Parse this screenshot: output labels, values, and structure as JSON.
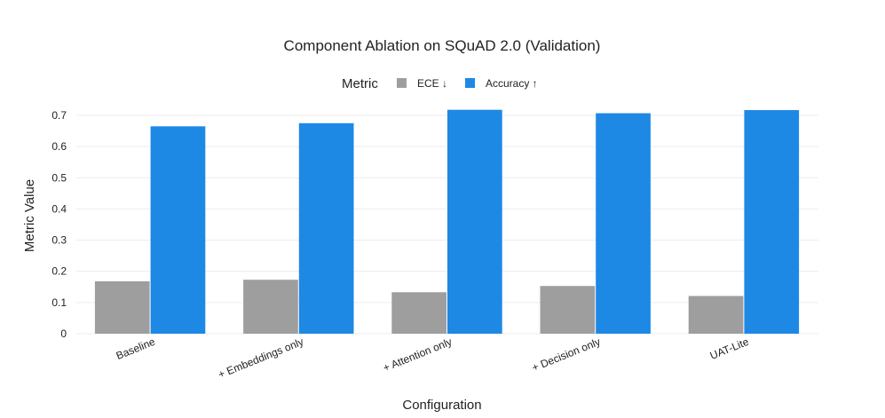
{
  "chart_data": {
    "type": "bar",
    "title": "Component Ablation on SQuAD 2.0 (Validation)",
    "xlabel": "Configuration",
    "ylabel": "Metric Value",
    "categories": [
      "Baseline",
      "+ Embeddings only",
      "+ Attention only",
      "+ Decision only",
      "UAT-Lite"
    ],
    "series": [
      {
        "name": "ECE ↓",
        "color": "#9e9e9e",
        "values": [
          0.168,
          0.173,
          0.133,
          0.153,
          0.121
        ]
      },
      {
        "name": "Accuracy ↑",
        "color": "#1e88e5",
        "values": [
          0.665,
          0.675,
          0.718,
          0.707,
          0.717
        ]
      }
    ],
    "legend": {
      "title": "Metric",
      "placement": "top-center"
    },
    "yticks": [
      "0",
      "0.1",
      "0.2",
      "0.3",
      "0.4",
      "0.5",
      "0.6",
      "0.7"
    ],
    "ylim": [
      0,
      0.72
    ],
    "grid": true
  }
}
